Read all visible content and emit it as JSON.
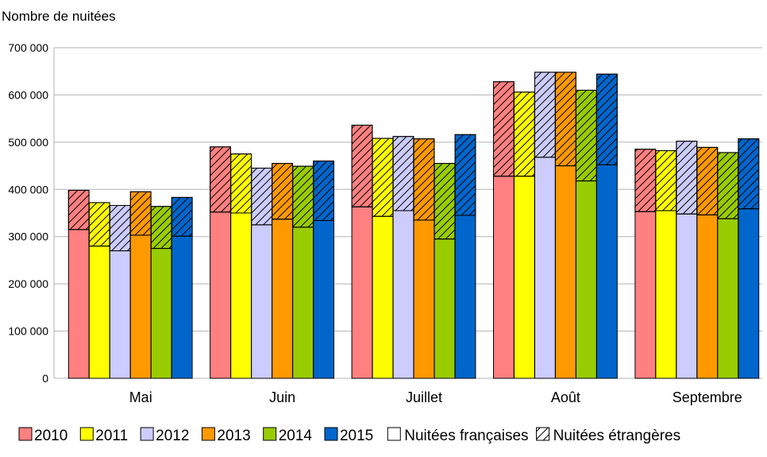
{
  "chart_data": {
    "type": "bar",
    "ylabel": "Nombre de nuitées",
    "xlabel": "",
    "ylim": [
      0,
      700000
    ],
    "yticks": [
      0,
      100000,
      200000,
      300000,
      400000,
      500000,
      600000,
      700000
    ],
    "ytick_labels": [
      "0",
      "100 000",
      "200 000",
      "300 000",
      "400 000",
      "500 000",
      "600 000",
      "700 000"
    ],
    "categories": [
      "Mai",
      "Juin",
      "Juillet",
      "Août",
      "Septembre"
    ],
    "stack_parts": [
      "Nuitées françaises",
      "Nuitées étrangères"
    ],
    "grid": true,
    "legend_position": "bottom",
    "series": [
      {
        "name": "2010",
        "color": "#ff8080",
        "francaises": [
          315000,
          352000,
          363000,
          428000,
          353000
        ],
        "total": [
          398000,
          490000,
          536000,
          628000,
          485000
        ]
      },
      {
        "name": "2011",
        "color": "#ffff00",
        "francaises": [
          280000,
          350000,
          343000,
          428000,
          355000
        ],
        "total": [
          372000,
          475000,
          508000,
          606000,
          482000
        ]
      },
      {
        "name": "2012",
        "color": "#ccccff",
        "francaises": [
          270000,
          325000,
          355000,
          468000,
          348000
        ],
        "total": [
          366000,
          445000,
          512000,
          648000,
          502000
        ]
      },
      {
        "name": "2013",
        "color": "#ff9900",
        "francaises": [
          303000,
          337000,
          335000,
          450000,
          346000
        ],
        "total": [
          395000,
          455000,
          507000,
          648000,
          489000
        ]
      },
      {
        "name": "2014",
        "color": "#99cc00",
        "francaises": [
          275000,
          320000,
          295000,
          418000,
          338000
        ],
        "total": [
          364000,
          449000,
          455000,
          610000,
          478000
        ]
      },
      {
        "name": "2015",
        "color": "#0066cc",
        "francaises": [
          301000,
          334000,
          345000,
          452000,
          359000
        ],
        "total": [
          383000,
          460000,
          516000,
          644000,
          507000
        ]
      }
    ]
  }
}
